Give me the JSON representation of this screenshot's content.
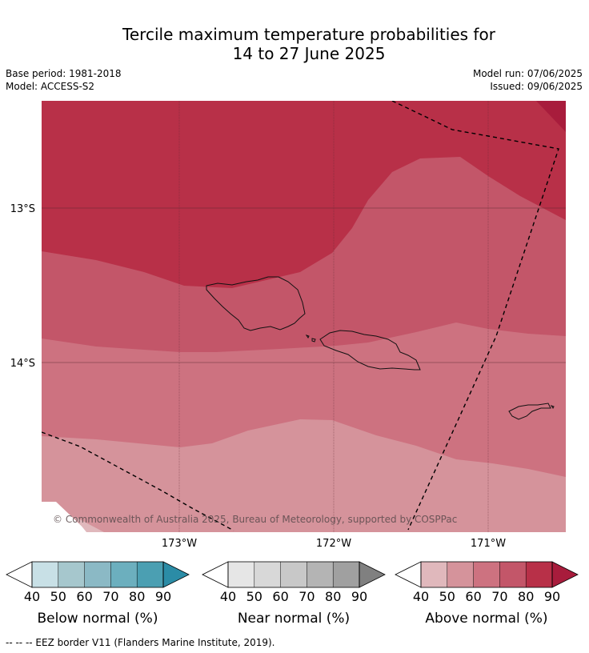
{
  "title_line1": "Tercile maximum temperature probabilities for",
  "title_line2": "14 to 27 June 2025",
  "base_period": "Base period: 1981-2018",
  "model": "Model: ACCESS-S2",
  "model_run": "Model run: 07/06/2025",
  "issued": "Issued: 09/06/2025",
  "copyright": "© Commonwealth of Australia 2025, Bureau of Meteorology, supported by COSPPac",
  "lat_labels": [
    "13°S",
    "14°S"
  ],
  "lon_labels": [
    "173°W",
    "172°W",
    "171°W"
  ],
  "footnote": "--  --  -- EEZ border V11 (Flanders Marine Institute, 2019).",
  "colorbars": [
    {
      "label": "Below normal (%)",
      "ticks": [
        "40",
        "50",
        "60",
        "70",
        "80",
        "90"
      ],
      "colors": [
        "#ffffff",
        "#c8e0e6",
        "#a6c7cd",
        "#8bb9c5",
        "#6cafbe",
        "#4b9fb2",
        "#2b8ca6"
      ]
    },
    {
      "label": "Near normal (%)",
      "ticks": [
        "40",
        "50",
        "60",
        "70",
        "80",
        "90"
      ],
      "colors": [
        "#ffffff",
        "#e6e6e6",
        "#d8d8d8",
        "#c8c8c8",
        "#b4b4b4",
        "#a0a0a0",
        "#808080"
      ]
    },
    {
      "label": "Above normal (%)",
      "ticks": [
        "40",
        "50",
        "60",
        "70",
        "80",
        "90"
      ],
      "colors": [
        "#ffffff",
        "#e0b8bc",
        "#d5939b",
        "#cd7280",
        "#c35669",
        "#b83048",
        "#a81c3c"
      ]
    }
  ],
  "legend_colors": {
    "above_50": "#d5939b",
    "above_60": "#cd7280",
    "above_70": "#c35669",
    "above_80": "#b83048",
    "above_90": "#a81c3c",
    "below_40": "#ffffff"
  }
}
